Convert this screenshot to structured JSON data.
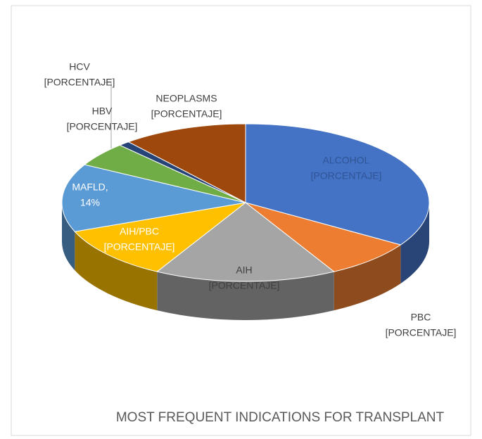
{
  "chart_data": {
    "type": "pie",
    "title": "MOST FREQUENT INDICATIONS FOR TRANSPLANT",
    "categories": [
      "ALCOHOL",
      "PBC",
      "AIH",
      "AIH/PBC",
      "MAFLD,",
      "HBV",
      "HCV",
      "NEOPLASMS"
    ],
    "values": [
      34,
      8,
      16,
      11,
      14,
      5,
      1,
      11
    ],
    "value_labels": [
      "[PORCENTAJE]",
      "[PORCENTAJE]",
      "[PORCENTAJE]",
      "[PORCENTAJE]",
      "14%",
      "[PORCENTAJE]",
      "[PORCENTAJE]",
      "[PORCENTAJE]"
    ],
    "colors": [
      "#4472c4",
      "#ed7d31",
      "#a5a5a5",
      "#ffc000",
      "#5b9bd5",
      "#70ad47",
      "#264478",
      "#9e480e"
    ]
  }
}
